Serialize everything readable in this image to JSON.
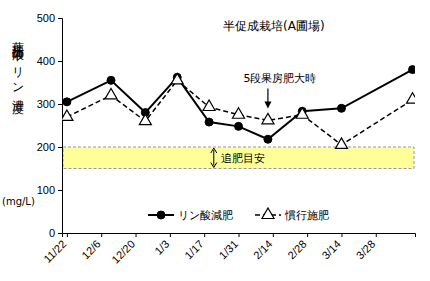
{
  "chart_data": {
    "type": "line",
    "title": "半促成栽培(A圃場)",
    "ylabel": "葉柄汁液中のリン濃度",
    "ylabel_unit": "(mg/L)",
    "x": [
      0,
      18,
      32,
      45,
      58,
      70,
      82,
      96,
      112,
      141
    ],
    "xlim": [
      -2,
      142
    ],
    "xticks": [
      {
        "value": 0,
        "label": "11/22"
      },
      {
        "value": 14,
        "label": "12/6"
      },
      {
        "value": 28,
        "label": "12/20"
      },
      {
        "value": 42,
        "label": "1/3"
      },
      {
        "value": 56,
        "label": "1/17"
      },
      {
        "value": 70,
        "label": "1/31"
      },
      {
        "value": 84,
        "label": "2/14"
      },
      {
        "value": 98,
        "label": "2/28"
      },
      {
        "value": 112,
        "label": "3/14"
      },
      {
        "value": 126,
        "label": "3/28"
      }
    ],
    "ylim": [
      0,
      500
    ],
    "yticks": [
      0,
      100,
      200,
      300,
      400,
      500
    ],
    "grid": false,
    "legend": "bottom",
    "series": [
      {
        "name": "リン酸減肥",
        "color": "#000000",
        "marker": "circle",
        "line_style": "solid",
        "values": [
          305,
          355,
          280,
          362,
          258,
          248,
          218,
          283,
          290,
          380
        ]
      },
      {
        "name": "慣行施肥",
        "color": "#000000",
        "marker": "triangle",
        "line_style": "dashed",
        "values": [
          270,
          320,
          260,
          355,
          293,
          275,
          262,
          275,
          205,
          310
        ]
      }
    ],
    "reference_band": {
      "range": [
        150,
        200
      ],
      "label": "追肥目安",
      "color": "#ffff99"
    },
    "annotations": [
      {
        "text": "5段果房肥大時",
        "x": 82,
        "y": 285
      }
    ]
  }
}
